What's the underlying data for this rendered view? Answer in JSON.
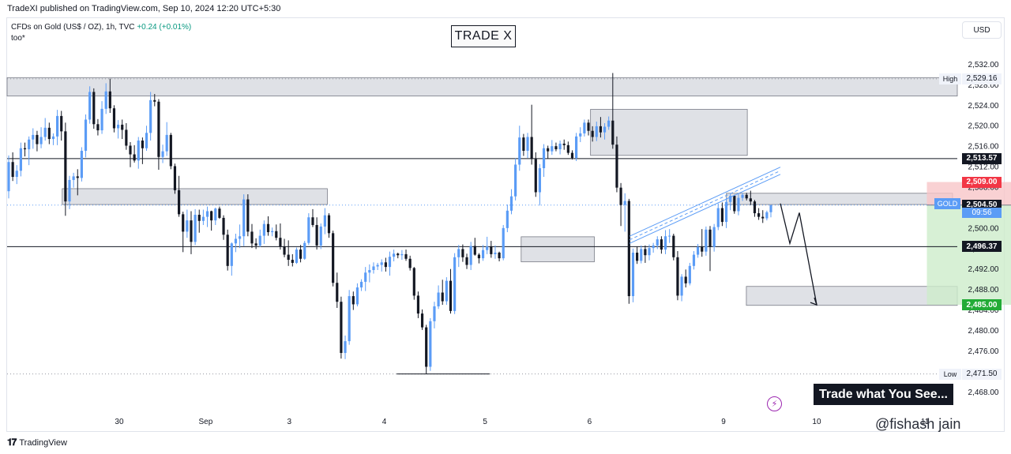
{
  "header": {
    "publisher": "TradeXI published on TradingView.com, Sep 10, 2024 12:20 UTC+5:30",
    "symbol": "CFDs on Gold (US$ / OZ), 1h, TVC",
    "change": "+0.24 (+0.01%)",
    "indicator": "too*"
  },
  "title_box": "TRADE X",
  "currency_button": "USD",
  "tagline": "Trade what You See...",
  "footer": {
    "logo_text": "TradingView",
    "watermark": "@fishash jain"
  },
  "icons": {
    "bolt": "lightning-icon",
    "logo": "tradingview-logo-icon"
  },
  "colors": {
    "up": "#5b9cf6",
    "down": "#131722",
    "zone": "#d1d4dc",
    "stop_zone": "#f7c6c8",
    "target_zone": "#cdeccb",
    "stop_tag": "#f23645",
    "target_tag": "#22ab36",
    "current_tag": "#5b9cf6"
  },
  "chart_data": {
    "type": "candlestick",
    "instrument": "GOLD",
    "timeframe": "1h",
    "ylim": [
      2466.5,
      2535.0
    ],
    "y_ticks": [
      "2,532.00",
      "2,528.00",
      "2,524.00",
      "2,520.00",
      "2,516.00",
      "2,512.00",
      "2,508.00",
      "2,504.00",
      "2,500.00",
      "2,496.00",
      "2,492.00",
      "2,488.00",
      "2,484.00",
      "2,480.00",
      "2,476.00",
      "2,472.00",
      "2,468.00"
    ],
    "y_tick_values": [
      2532,
      2528,
      2524,
      2520,
      2516,
      2512,
      2508,
      2504,
      2500,
      2496,
      2492,
      2488,
      2484,
      2480,
      2476,
      2472,
      2468
    ],
    "x_ticks": [
      {
        "label": "30",
        "t": 0.118
      },
      {
        "label": "Sep",
        "t": 0.209
      },
      {
        "label": "3",
        "t": 0.297
      },
      {
        "label": "4",
        "t": 0.397
      },
      {
        "label": "5",
        "t": 0.503
      },
      {
        "label": "6",
        "t": 0.613
      },
      {
        "label": "9",
        "t": 0.754
      },
      {
        "label": "10",
        "t": 0.852
      },
      {
        "label": "11",
        "t": 0.966
      }
    ],
    "price_labels": {
      "high": {
        "label": "High",
        "value": 2529.16,
        "text": "2,529.16"
      },
      "low": {
        "label": "Low",
        "value": 2471.5,
        "text": "2,471.50"
      },
      "resistance": {
        "value": 2513.57,
        "text": "2,513.57"
      },
      "stop": {
        "value": 2509.0,
        "text": "2,509.00"
      },
      "current": {
        "value": 2504.5,
        "text": "2,504.50",
        "symbol": "GOLD",
        "timer": "09:56"
      },
      "support": {
        "value": 2496.37,
        "text": "2,496.37"
      },
      "target": {
        "value": 2485.0,
        "text": "2,485.00"
      }
    },
    "horizontal_lines": [
      2513.57,
      2496.37
    ],
    "zones": [
      {
        "t0": 0.0,
        "t1": 1.0,
        "top": 2529.4,
        "bottom": 2525.8
      },
      {
        "t0": 0.058,
        "t1": 0.337,
        "top": 2507.7,
        "bottom": 2504.6
      },
      {
        "t0": 0.541,
        "t1": 0.618,
        "top": 2498.3,
        "bottom": 2493.4
      },
      {
        "t0": 0.614,
        "t1": 0.779,
        "top": 2523.2,
        "bottom": 2514.2
      },
      {
        "t0": 0.757,
        "t1": 0.995,
        "top": 2506.8,
        "bottom": 2504.6
      },
      {
        "t0": 0.778,
        "t1": 1.006,
        "top": 2488.6,
        "bottom": 2484.9
      }
    ],
    "position": {
      "t0": 0.968,
      "t1": 1.081,
      "entry": 2504.5,
      "stop": 2509.0,
      "target": 2485.0
    },
    "low_line": {
      "t0": 0.41,
      "t1": 0.508,
      "value": 2471.5
    },
    "candles": [
      [
        2507.2,
        2514.2,
        2505.8,
        2512.9
      ],
      [
        2512.9,
        2514.8,
        2509.2,
        2510.0
      ],
      [
        2510.0,
        2512.3,
        2508.6,
        2511.2
      ],
      [
        2511.2,
        2516.7,
        2510.1,
        2515.6
      ],
      [
        2515.6,
        2516.7,
        2514.0,
        2515.4
      ],
      [
        2515.4,
        2517.9,
        2512.3,
        2517.3
      ],
      [
        2517.3,
        2519.5,
        2515.5,
        2518.2
      ],
      [
        2518.2,
        2519.0,
        2515.0,
        2516.4
      ],
      [
        2516.4,
        2519.7,
        2515.6,
        2517.8
      ],
      [
        2517.8,
        2521.5,
        2517.1,
        2519.6
      ],
      [
        2519.6,
        2520.6,
        2516.4,
        2517.4
      ],
      [
        2517.4,
        2518.5,
        2516.2,
        2517.9
      ],
      [
        2517.9,
        2523.1,
        2516.2,
        2521.9
      ],
      [
        2521.9,
        2522.9,
        2517.1,
        2518.9
      ],
      [
        2518.9,
        2520.6,
        2502.4,
        2505.2
      ],
      [
        2505.2,
        2510.2,
        2503.7,
        2509.4
      ],
      [
        2509.4,
        2510.8,
        2507.9,
        2510.1
      ],
      [
        2510.1,
        2511.5,
        2506.4,
        2509.8
      ],
      [
        2509.8,
        2515.8,
        2509.1,
        2515.1
      ],
      [
        2515.1,
        2522.2,
        2513.8,
        2521.2
      ],
      [
        2521.2,
        2527.7,
        2520.4,
        2526.6
      ],
      [
        2526.6,
        2527.3,
        2519.4,
        2520.3
      ],
      [
        2520.3,
        2521.3,
        2518.1,
        2519.1
      ],
      [
        2519.1,
        2524.8,
        2518.4,
        2523.3
      ],
      [
        2523.3,
        2528.3,
        2522.3,
        2526.7
      ],
      [
        2526.7,
        2529.2,
        2522.5,
        2523.4
      ],
      [
        2523.4,
        2524.0,
        2518.7,
        2519.5
      ],
      [
        2519.5,
        2521.1,
        2517.5,
        2520.2
      ],
      [
        2520.2,
        2521.2,
        2517.4,
        2519.2
      ],
      [
        2519.2,
        2520.5,
        2515.3,
        2516.1
      ],
      [
        2516.1,
        2516.8,
        2511.9,
        2514.4
      ],
      [
        2514.4,
        2516.2,
        2512.8,
        2513.2
      ],
      [
        2513.2,
        2517.8,
        2511.6,
        2517.1
      ],
      [
        2517.1,
        2517.7,
        2512.5,
        2515.6
      ],
      [
        2515.6,
        2520.0,
        2515.1,
        2518.6
      ],
      [
        2518.6,
        2526.6,
        2517.1,
        2525.0
      ],
      [
        2525.0,
        2526.2,
        2523.8,
        2524.7
      ],
      [
        2524.7,
        2525.2,
        2511.4,
        2513.9
      ],
      [
        2513.9,
        2516.3,
        2512.7,
        2515.0
      ],
      [
        2515.0,
        2520.7,
        2514.1,
        2518.2
      ],
      [
        2518.2,
        2518.6,
        2511.5,
        2512.1
      ],
      [
        2512.1,
        2512.6,
        2506.7,
        2507.4
      ],
      [
        2507.4,
        2510.2,
        2502.2,
        2502.7
      ],
      [
        2502.7,
        2503.2,
        2495.3,
        2499.3
      ],
      [
        2499.3,
        2503.6,
        2498.1,
        2501.5
      ],
      [
        2501.5,
        2503.3,
        2494.9,
        2497.3
      ],
      [
        2497.3,
        2503.7,
        2496.7,
        2502.6
      ],
      [
        2502.6,
        2503.6,
        2499.1,
        2501.4
      ],
      [
        2501.4,
        2503.6,
        2500.6,
        2502.2
      ],
      [
        2502.2,
        2504.2,
        2500.2,
        2503.3
      ],
      [
        2503.3,
        2503.4,
        2499.5,
        2501.5
      ],
      [
        2501.5,
        2504.0,
        2500.6,
        2503.8
      ],
      [
        2503.8,
        2504.2,
        2501.8,
        2502.0
      ],
      [
        2502.0,
        2502.5,
        2497.7,
        2498.7
      ],
      [
        2498.7,
        2499.7,
        2491.7,
        2492.6
      ],
      [
        2492.6,
        2497.2,
        2490.7,
        2497.0
      ],
      [
        2497.0,
        2498.9,
        2495.3,
        2497.9
      ],
      [
        2497.9,
        2500.7,
        2496.1,
        2498.4
      ],
      [
        2498.4,
        2506.6,
        2496.5,
        2505.6
      ],
      [
        2505.6,
        2506.6,
        2498.4,
        2499.3
      ],
      [
        2499.3,
        2500.8,
        2496.1,
        2497.0
      ],
      [
        2497.0,
        2498.0,
        2495.9,
        2496.6
      ],
      [
        2496.6,
        2499.7,
        2496.3,
        2498.5
      ],
      [
        2498.5,
        2501.5,
        2496.9,
        2500.8
      ],
      [
        2500.8,
        2502.3,
        2498.5,
        2499.2
      ],
      [
        2499.2,
        2500.1,
        2498.4,
        2499.4
      ],
      [
        2499.4,
        2500.7,
        2497.6,
        2498.1
      ],
      [
        2498.1,
        2500.9,
        2495.8,
        2496.4
      ],
      [
        2496.4,
        2497.9,
        2494.3,
        2494.8
      ],
      [
        2494.8,
        2497.6,
        2492.6,
        2493.8
      ],
      [
        2493.8,
        2494.9,
        2492.5,
        2493.2
      ],
      [
        2493.2,
        2496.2,
        2493.0,
        2495.8
      ],
      [
        2495.8,
        2496.7,
        2493.3,
        2494.0
      ],
      [
        2494.0,
        2497.5,
        2493.8,
        2497.1
      ],
      [
        2497.1,
        2502.9,
        2496.7,
        2502.1
      ],
      [
        2502.1,
        2503.7,
        2500.2,
        2500.6
      ],
      [
        2500.6,
        2502.1,
        2495.8,
        2496.6
      ],
      [
        2496.6,
        2500.9,
        2495.9,
        2500.3
      ],
      [
        2500.3,
        2503.9,
        2498.8,
        2502.5
      ],
      [
        2502.5,
        2502.9,
        2498.1,
        2499.0
      ],
      [
        2499.0,
        2499.5,
        2488.6,
        2489.3
      ],
      [
        2489.3,
        2491.3,
        2484.4,
        2485.6
      ],
      [
        2485.6,
        2486.6,
        2474.5,
        2475.6
      ],
      [
        2475.6,
        2479.0,
        2474.4,
        2477.9
      ],
      [
        2477.9,
        2487.9,
        2477.2,
        2486.7
      ],
      [
        2486.7,
        2487.6,
        2484.0,
        2485.1
      ],
      [
        2485.1,
        2489.2,
        2484.7,
        2488.4
      ],
      [
        2488.4,
        2490.0,
        2487.7,
        2489.5
      ],
      [
        2489.5,
        2492.4,
        2487.7,
        2491.3
      ],
      [
        2491.3,
        2492.9,
        2489.4,
        2491.8
      ],
      [
        2491.8,
        2493.3,
        2491.1,
        2492.5
      ],
      [
        2492.5,
        2493.2,
        2491.8,
        2492.8
      ],
      [
        2492.8,
        2493.9,
        2491.5,
        2493.3
      ],
      [
        2493.3,
        2494.2,
        2491.5,
        2492.4
      ],
      [
        2492.4,
        2495.4,
        2490.7,
        2494.4
      ],
      [
        2494.4,
        2495.8,
        2493.5,
        2495.0
      ],
      [
        2495.0,
        2495.2,
        2494.1,
        2494.7
      ],
      [
        2494.7,
        2495.7,
        2493.8,
        2494.9
      ],
      [
        2494.9,
        2495.8,
        2493.6,
        2494.0
      ],
      [
        2494.0,
        2494.6,
        2491.7,
        2492.2
      ],
      [
        2492.2,
        2492.4,
        2486.0,
        2486.8
      ],
      [
        2486.8,
        2487.6,
        2482.4,
        2483.3
      ],
      [
        2483.3,
        2484.1,
        2480.1,
        2480.6
      ],
      [
        2480.6,
        2481.1,
        2471.5,
        2472.9
      ],
      [
        2472.9,
        2482.4,
        2472.1,
        2481.8
      ],
      [
        2481.8,
        2485.6,
        2480.4,
        2484.7
      ],
      [
        2484.7,
        2488.8,
        2484.2,
        2487.4
      ],
      [
        2487.4,
        2489.9,
        2485.0,
        2485.7
      ],
      [
        2485.7,
        2490.4,
        2485.0,
        2489.7
      ],
      [
        2489.7,
        2492.0,
        2483.3,
        2483.8
      ],
      [
        2483.8,
        2495.1,
        2483.2,
        2494.3
      ],
      [
        2494.3,
        2496.7,
        2492.4,
        2495.9
      ],
      [
        2495.9,
        2496.8,
        2493.4,
        2494.3
      ],
      [
        2494.3,
        2495.0,
        2492.0,
        2492.8
      ],
      [
        2492.8,
        2497.3,
        2491.8,
        2496.5
      ],
      [
        2496.5,
        2498.1,
        2494.6,
        2494.8
      ],
      [
        2494.8,
        2495.1,
        2493.1,
        2494.1
      ],
      [
        2494.1,
        2496.7,
        2493.6,
        2495.7
      ],
      [
        2495.7,
        2498.3,
        2494.9,
        2496.4
      ],
      [
        2496.4,
        2497.5,
        2494.2,
        2494.9
      ],
      [
        2494.9,
        2496.6,
        2494.0,
        2495.2
      ],
      [
        2495.2,
        2495.4,
        2493.5,
        2494.1
      ],
      [
        2494.1,
        2500.6,
        2493.7,
        2500.0
      ],
      [
        2500.0,
        2504.6,
        2499.2,
        2503.4
      ],
      [
        2503.4,
        2507.6,
        2502.7,
        2506.2
      ],
      [
        2506.2,
        2513.6,
        2505.4,
        2512.4
      ],
      [
        2512.4,
        2520.0,
        2511.2,
        2517.7
      ],
      [
        2517.7,
        2518.4,
        2514.1,
        2515.1
      ],
      [
        2515.1,
        2518.6,
        2513.7,
        2517.8
      ],
      [
        2517.8,
        2524.1,
        2512.4,
        2513.5
      ],
      [
        2513.5,
        2514.8,
        2506.1,
        2507.0
      ],
      [
        2507.0,
        2512.5,
        2504.4,
        2511.7
      ],
      [
        2511.7,
        2516.4,
        2510.0,
        2515.6
      ],
      [
        2515.6,
        2516.1,
        2513.6,
        2515.0
      ],
      [
        2515.0,
        2517.2,
        2514.3,
        2516.0
      ],
      [
        2516.0,
        2516.7,
        2515.0,
        2515.4
      ],
      [
        2515.4,
        2517.1,
        2514.4,
        2516.5
      ],
      [
        2516.5,
        2517.3,
        2515.3,
        2516.2
      ],
      [
        2516.2,
        2516.9,
        2514.3,
        2514.7
      ],
      [
        2514.7,
        2515.2,
        2513.4,
        2513.7
      ],
      [
        2513.7,
        2518.6,
        2513.1,
        2517.9
      ],
      [
        2517.9,
        2519.7,
        2516.8,
        2518.5
      ],
      [
        2518.5,
        2521.2,
        2517.9,
        2520.6
      ],
      [
        2520.6,
        2521.2,
        2518.1,
        2519.0
      ],
      [
        2519.0,
        2519.9,
        2516.9,
        2517.8
      ],
      [
        2517.8,
        2520.8,
        2517.0,
        2519.9
      ],
      [
        2519.9,
        2521.7,
        2517.7,
        2518.7
      ],
      [
        2518.7,
        2520.5,
        2517.3,
        2519.8
      ],
      [
        2519.8,
        2521.8,
        2519.2,
        2521.0
      ],
      [
        2521.0,
        2530.3,
        2515.5,
        2516.3
      ],
      [
        2516.3,
        2517.9,
        2507.0,
        2507.9
      ],
      [
        2507.9,
        2508.8,
        2500.4,
        2504.5
      ],
      [
        2504.5,
        2506.8,
        2499.3,
        2505.3
      ],
      [
        2505.3,
        2505.7,
        2485.2,
        2486.7
      ],
      [
        2486.7,
        2496.0,
        2485.5,
        2495.2
      ],
      [
        2495.2,
        2496.4,
        2493.0,
        2493.6
      ],
      [
        2493.6,
        2496.6,
        2493.1,
        2495.9
      ],
      [
        2495.9,
        2496.6,
        2493.2,
        2494.7
      ],
      [
        2494.7,
        2496.8,
        2493.7,
        2496.1
      ],
      [
        2496.1,
        2497.1,
        2495.2,
        2496.6
      ],
      [
        2496.6,
        2498.4,
        2495.9,
        2497.8
      ],
      [
        2497.8,
        2498.4,
        2495.0,
        2495.8
      ],
      [
        2495.8,
        2499.6,
        2494.9,
        2498.4
      ],
      [
        2498.4,
        2499.8,
        2497.1,
        2498.5
      ],
      [
        2498.5,
        2498.9,
        2493.7,
        2494.3
      ],
      [
        2494.3,
        2495.5,
        2485.9,
        2486.8
      ],
      [
        2486.8,
        2491.0,
        2485.7,
        2490.5
      ],
      [
        2490.5,
        2491.9,
        2488.4,
        2489.2
      ],
      [
        2489.2,
        2493.2,
        2488.8,
        2492.6
      ],
      [
        2492.6,
        2495.5,
        2491.9,
        2494.8
      ],
      [
        2494.8,
        2496.9,
        2494.2,
        2496.3
      ],
      [
        2496.3,
        2499.8,
        2494.4,
        2495.4
      ],
      [
        2495.4,
        2500.3,
        2494.6,
        2499.7
      ],
      [
        2499.7,
        2500.4,
        2491.6,
        2496.3
      ],
      [
        2496.3,
        2500.8,
        2495.4,
        2500.2
      ],
      [
        2500.2,
        2504.8,
        2499.6,
        2503.9
      ],
      [
        2503.9,
        2505.0,
        2500.4,
        2501.2
      ],
      [
        2501.2,
        2505.9,
        2500.0,
        2505.1
      ],
      [
        2505.1,
        2506.7,
        2503.5,
        2506.3
      ],
      [
        2506.3,
        2506.5,
        2502.8,
        2503.3
      ],
      [
        2503.3,
        2506.7,
        2502.5,
        2505.9
      ],
      [
        2505.9,
        2506.9,
        2505.3,
        2506.5
      ],
      [
        2506.5,
        2506.9,
        2505.4,
        2505.8
      ],
      [
        2505.8,
        2507.3,
        2504.5,
        2505.2
      ],
      [
        2505.2,
        2505.5,
        2502.2,
        2502.9
      ],
      [
        2502.9,
        2503.9,
        2501.6,
        2502.2
      ],
      [
        2502.2,
        2503.5,
        2501.0,
        2501.9
      ],
      [
        2501.9,
        2503.4,
        2501.5,
        2503.1
      ],
      [
        2503.1,
        2504.5,
        2502.1,
        2504.5
      ]
    ]
  }
}
